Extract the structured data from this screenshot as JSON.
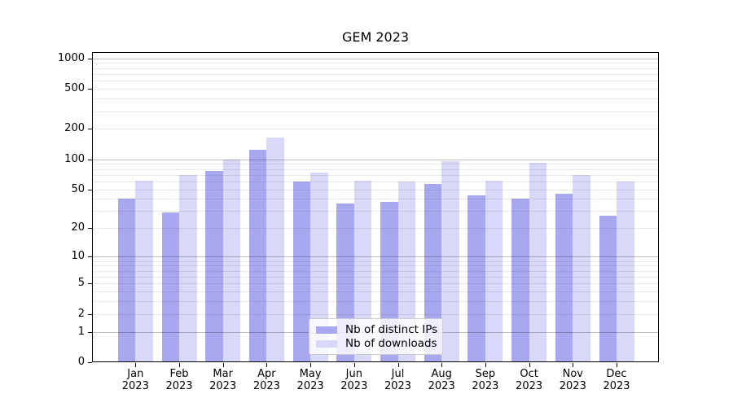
{
  "chart_data": {
    "type": "bar",
    "title": "GEM 2023",
    "x": {
      "months": [
        "Jan",
        "Feb",
        "Mar",
        "Apr",
        "May",
        "Jun",
        "Jul",
        "Aug",
        "Sep",
        "Oct",
        "Nov",
        "Dec"
      ],
      "year": "2023"
    },
    "categories": [
      "Jan 2023",
      "Feb 2023",
      "Mar 2023",
      "Apr 2023",
      "May 2023",
      "Jun 2023",
      "Jul 2023",
      "Aug 2023",
      "Sep 2023",
      "Oct 2023",
      "Nov 2023",
      "Dec 2023"
    ],
    "series": [
      {
        "name": "Nb of distinct IPs",
        "color": "#a8a8f0",
        "values": [
          40,
          29,
          77,
          124,
          60,
          36,
          37,
          57,
          43,
          40,
          45,
          27
        ]
      },
      {
        "name": "Nb of downloads",
        "color": "#d8d8f8",
        "values": [
          61,
          69,
          100,
          163,
          74,
          61,
          60,
          96,
          61,
          92,
          70,
          60
        ]
      }
    ],
    "y_axis": {
      "scale": "symlog",
      "ticks": [
        0,
        1,
        2,
        5,
        10,
        20,
        50,
        100,
        200,
        500,
        1000
      ],
      "tick_labels": [
        "0",
        "1",
        "2",
        "5",
        "10",
        "20",
        "50",
        "100",
        "200",
        "500",
        "1000"
      ],
      "range": [
        0,
        1150
      ],
      "major_gridlines": [
        1,
        10,
        100,
        1000
      ],
      "grid": true
    },
    "legend": {
      "position": "lower-center-inside"
    }
  },
  "colors": {
    "series_dark": "#a8a8f0",
    "series_light": "#d8d8f8",
    "axis": "#000000",
    "legend_border": "#cccccc"
  }
}
